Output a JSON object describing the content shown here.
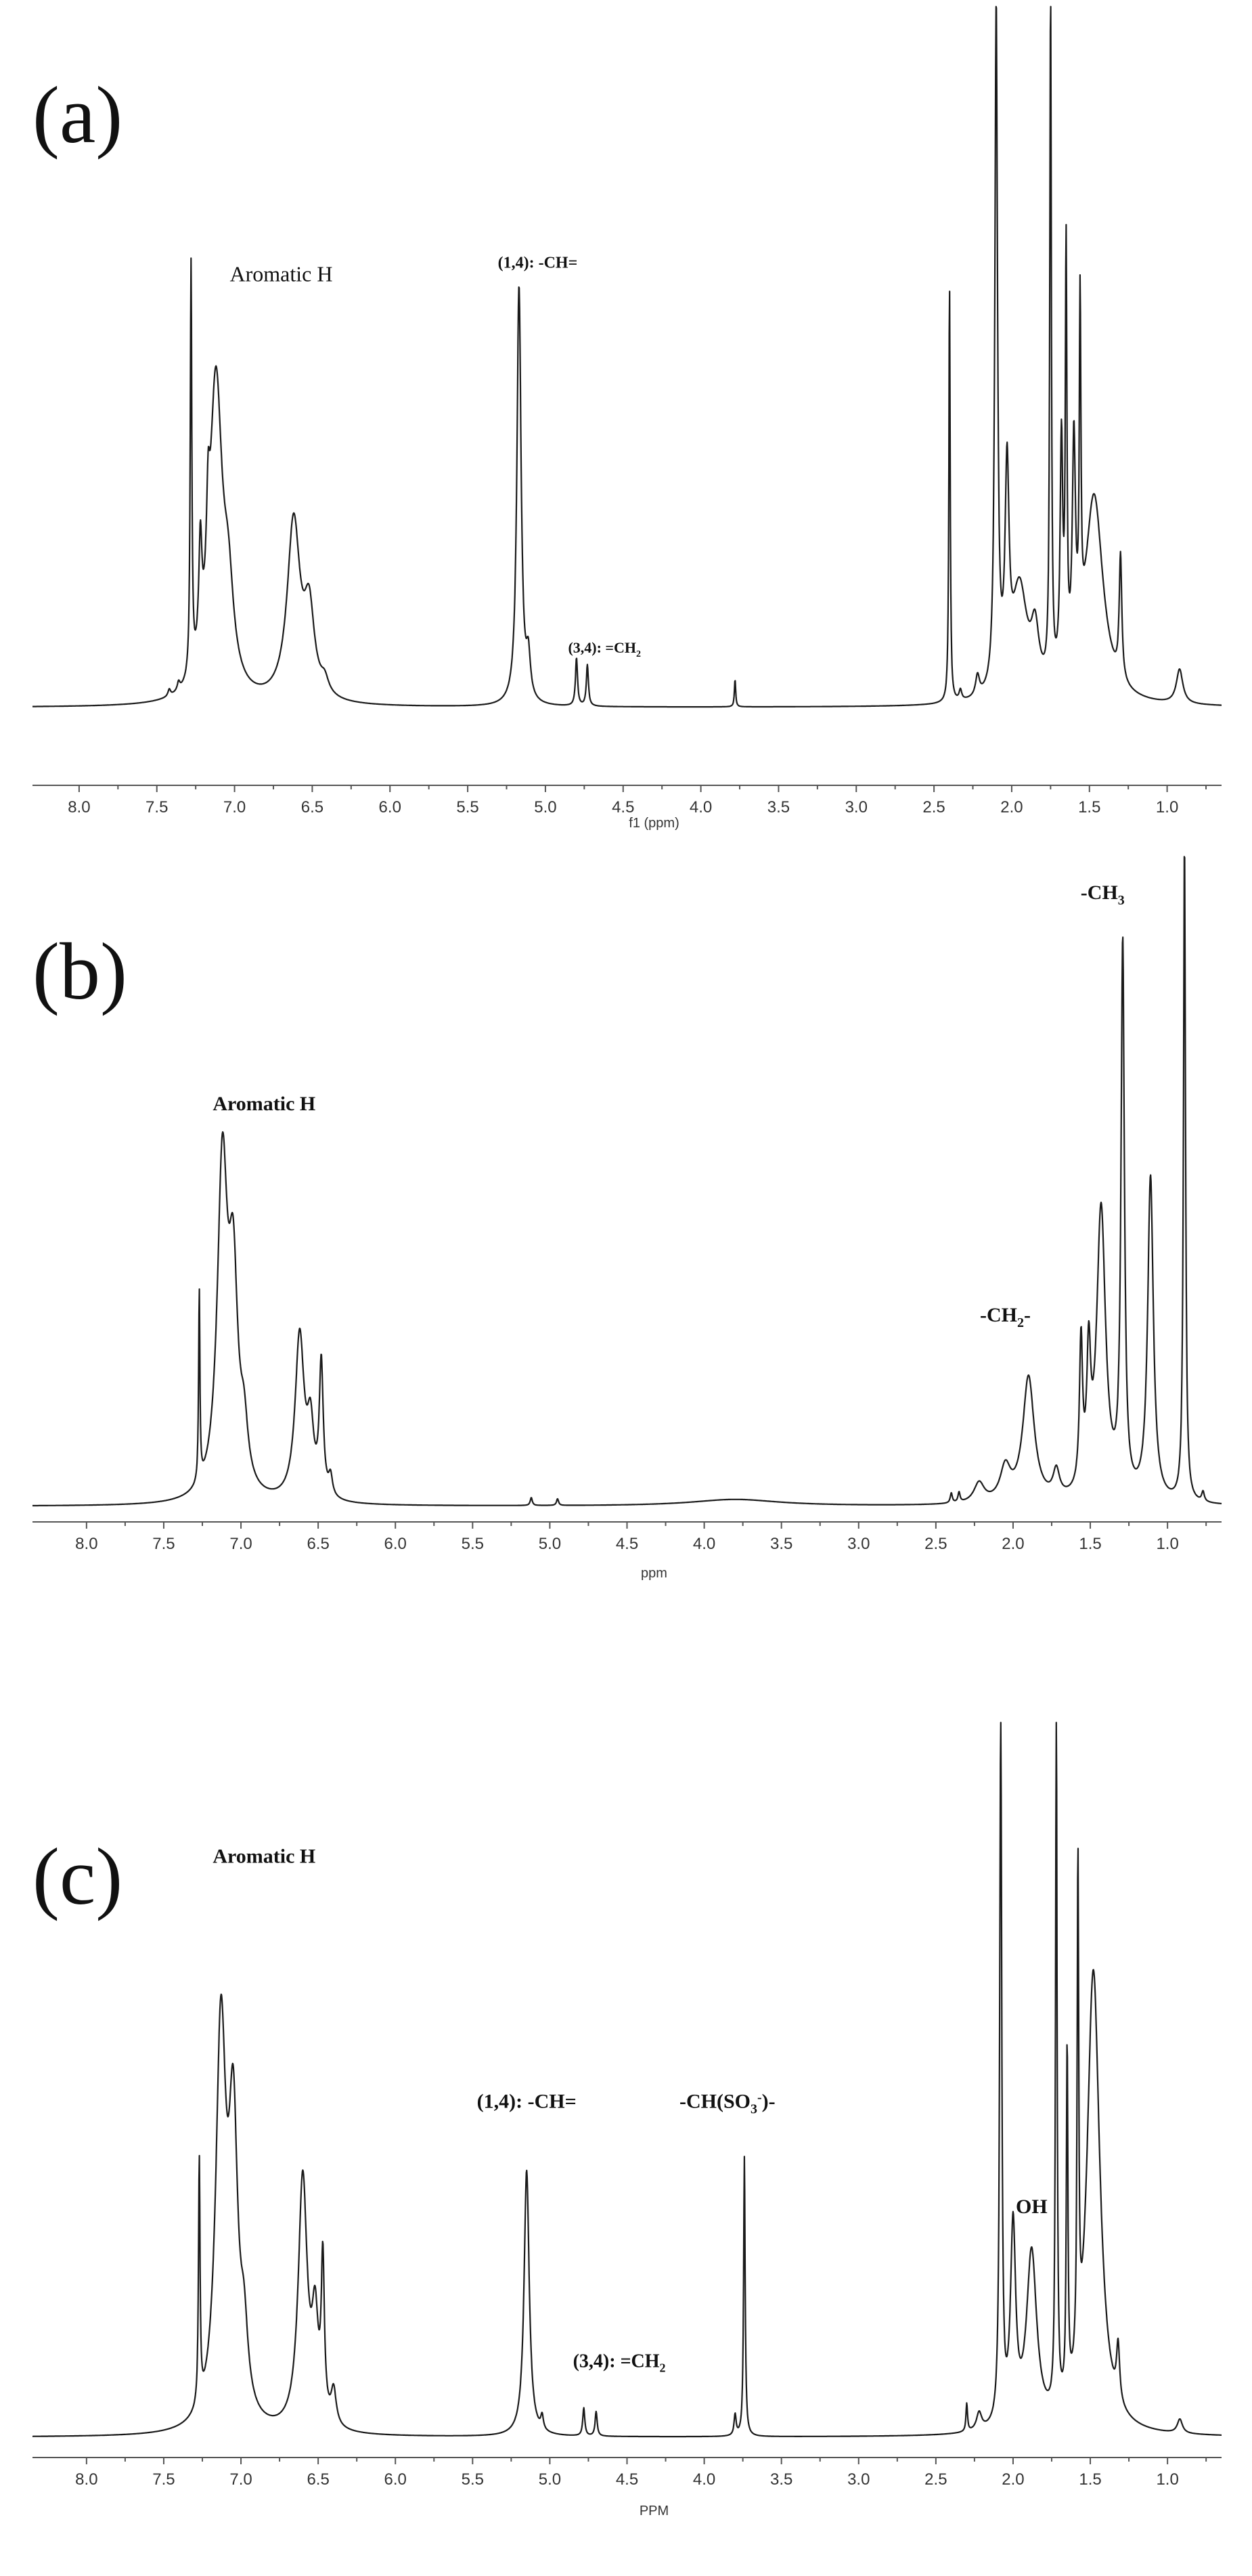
{
  "chart_data": [
    {
      "type": "line",
      "panel_label": "(a)",
      "xlabel": "f1 (ppm)",
      "xlim": [
        8.3,
        0.65
      ],
      "x_reversed": true,
      "ticks": [
        "8.0",
        "7.5",
        "7.0",
        "6.5",
        "6.0",
        "5.5",
        "5.0",
        "4.5",
        "4.0",
        "3.5",
        "3.0",
        "2.5",
        "2.0",
        "1.5",
        "1.0"
      ],
      "y_top": 1.0,
      "peaks": [
        {
          "x": 7.42,
          "h": 0.01,
          "w": 0.01
        },
        {
          "x": 7.36,
          "h": 0.012,
          "w": 0.01
        },
        {
          "x": 7.28,
          "h": 0.6,
          "w": 0.006
        },
        {
          "x": 7.22,
          "h": 0.16,
          "w": 0.012
        },
        {
          "x": 7.17,
          "h": 0.12,
          "w": 0.012
        },
        {
          "x": 7.12,
          "h": 0.46,
          "w": 0.05
        },
        {
          "x": 7.04,
          "h": 0.12,
          "w": 0.04
        },
        {
          "x": 6.62,
          "h": 0.26,
          "w": 0.05
        },
        {
          "x": 6.52,
          "h": 0.12,
          "w": 0.04
        },
        {
          "x": 6.42,
          "h": 0.02,
          "w": 0.03
        },
        {
          "x": 5.17,
          "h": 0.61,
          "w": 0.016
        },
        {
          "x": 5.11,
          "h": 0.06,
          "w": 0.016
        },
        {
          "x": 4.8,
          "h": 0.07,
          "w": 0.008
        },
        {
          "x": 4.73,
          "h": 0.06,
          "w": 0.008
        },
        {
          "x": 3.78,
          "h": 0.04,
          "w": 0.005
        },
        {
          "x": 2.4,
          "h": 0.61,
          "w": 0.005
        },
        {
          "x": 2.33,
          "h": 0.015,
          "w": 0.01
        },
        {
          "x": 2.22,
          "h": 0.03,
          "w": 0.015
        },
        {
          "x": 2.1,
          "h": 1.0,
          "w": 0.01
        },
        {
          "x": 2.03,
          "h": 0.3,
          "w": 0.015
        },
        {
          "x": 1.95,
          "h": 0.16,
          "w": 0.06
        },
        {
          "x": 1.85,
          "h": 0.08,
          "w": 0.03
        },
        {
          "x": 1.75,
          "h": 1.0,
          "w": 0.006
        },
        {
          "x": 1.68,
          "h": 0.34,
          "w": 0.01
        },
        {
          "x": 1.65,
          "h": 0.6,
          "w": 0.006
        },
        {
          "x": 1.6,
          "h": 0.32,
          "w": 0.012
        },
        {
          "x": 1.56,
          "h": 0.48,
          "w": 0.006
        },
        {
          "x": 1.47,
          "h": 0.3,
          "w": 0.07
        },
        {
          "x": 1.3,
          "h": 0.18,
          "w": 0.01
        },
        {
          "x": 0.92,
          "h": 0.05,
          "w": 0.025
        }
      ],
      "annotations": [
        {
          "text": "Aromatic H",
          "x": 6.7,
          "y": 0.62,
          "size": 32,
          "bold": false
        },
        {
          "text": "(1,4): -CH=",
          "x": 5.05,
          "y": 0.64,
          "size": 24,
          "bold": true
        },
        {
          "text": "(3,4): =CH",
          "sub": "2",
          "x": 4.62,
          "y": 0.08,
          "size": 22,
          "bold": true
        }
      ]
    },
    {
      "type": "line",
      "panel_label": "(b)",
      "xlabel": "ppm",
      "xlim": [
        8.35,
        0.65
      ],
      "x_reversed": true,
      "ticks": [
        "8.0",
        "7.5",
        "7.0",
        "6.5",
        "6.0",
        "5.5",
        "5.0",
        "4.5",
        "4.0",
        "3.5",
        "3.0",
        "2.5",
        "2.0",
        "1.5",
        "1.0"
      ],
      "y_top": 1.0,
      "peaks": [
        {
          "x": 7.27,
          "h": 0.29,
          "w": 0.005
        },
        {
          "x": 7.12,
          "h": 0.5,
          "w": 0.04
        },
        {
          "x": 7.05,
          "h": 0.3,
          "w": 0.035
        },
        {
          "x": 6.98,
          "h": 0.08,
          "w": 0.03
        },
        {
          "x": 6.62,
          "h": 0.25,
          "w": 0.035
        },
        {
          "x": 6.55,
          "h": 0.1,
          "w": 0.025
        },
        {
          "x": 6.48,
          "h": 0.2,
          "w": 0.015
        },
        {
          "x": 6.42,
          "h": 0.03,
          "w": 0.015
        },
        {
          "x": 5.12,
          "h": 0.012,
          "w": 0.008
        },
        {
          "x": 4.95,
          "h": 0.01,
          "w": 0.008
        },
        {
          "x": 3.8,
          "h": 0.01,
          "w": 0.35
        },
        {
          "x": 2.4,
          "h": 0.015,
          "w": 0.008
        },
        {
          "x": 2.35,
          "h": 0.015,
          "w": 0.008
        },
        {
          "x": 2.22,
          "h": 0.03,
          "w": 0.04
        },
        {
          "x": 2.05,
          "h": 0.05,
          "w": 0.04
        },
        {
          "x": 1.9,
          "h": 0.19,
          "w": 0.045
        },
        {
          "x": 1.72,
          "h": 0.04,
          "w": 0.025
        },
        {
          "x": 1.56,
          "h": 0.22,
          "w": 0.012
        },
        {
          "x": 1.51,
          "h": 0.19,
          "w": 0.015
        },
        {
          "x": 1.43,
          "h": 0.44,
          "w": 0.035
        },
        {
          "x": 1.29,
          "h": 0.83,
          "w": 0.013
        },
        {
          "x": 1.11,
          "h": 0.49,
          "w": 0.022
        },
        {
          "x": 0.89,
          "h": 1.0,
          "w": 0.008
        },
        {
          "x": 0.77,
          "h": 0.015,
          "w": 0.01
        }
      ],
      "annotations": [
        {
          "text": "Aromatic H",
          "x": 6.85,
          "y": 0.6,
          "size": 30,
          "bold": true
        },
        {
          "text": "-CH",
          "sub": "3",
          "x": 1.42,
          "y": 0.92,
          "size": 30,
          "bold": true
        },
        {
          "text": "-CH",
          "sub": "2",
          "suffix": "-",
          "x": 2.05,
          "y": 0.28,
          "size": 30,
          "bold": true
        }
      ]
    },
    {
      "type": "line",
      "panel_label": "(c)",
      "xlabel": "PPM",
      "xlim": [
        8.35,
        0.65
      ],
      "x_reversed": true,
      "ticks": [
        "8.0",
        "7.5",
        "7.0",
        "6.5",
        "6.0",
        "5.5",
        "5.0",
        "4.5",
        "4.0",
        "3.5",
        "3.0",
        "2.5",
        "2.0",
        "1.5",
        "1.0"
      ],
      "y_top": 1.0,
      "peaks": [
        {
          "x": 7.27,
          "h": 0.35,
          "w": 0.006
        },
        {
          "x": 7.13,
          "h": 0.56,
          "w": 0.04
        },
        {
          "x": 7.05,
          "h": 0.4,
          "w": 0.035
        },
        {
          "x": 6.98,
          "h": 0.1,
          "w": 0.03
        },
        {
          "x": 6.6,
          "h": 0.36,
          "w": 0.035
        },
        {
          "x": 6.52,
          "h": 0.14,
          "w": 0.025
        },
        {
          "x": 6.47,
          "h": 0.22,
          "w": 0.012
        },
        {
          "x": 6.4,
          "h": 0.05,
          "w": 0.02
        },
        {
          "x": 5.15,
          "h": 0.38,
          "w": 0.02
        },
        {
          "x": 5.05,
          "h": 0.02,
          "w": 0.01
        },
        {
          "x": 4.78,
          "h": 0.04,
          "w": 0.008
        },
        {
          "x": 4.7,
          "h": 0.035,
          "w": 0.008
        },
        {
          "x": 3.8,
          "h": 0.03,
          "w": 0.008
        },
        {
          "x": 3.74,
          "h": 0.4,
          "w": 0.006
        },
        {
          "x": 2.3,
          "h": 0.04,
          "w": 0.006
        },
        {
          "x": 2.22,
          "h": 0.025,
          "w": 0.02
        },
        {
          "x": 2.08,
          "h": 1.0,
          "w": 0.008
        },
        {
          "x": 2.0,
          "h": 0.28,
          "w": 0.02
        },
        {
          "x": 1.88,
          "h": 0.25,
          "w": 0.04
        },
        {
          "x": 1.72,
          "h": 1.0,
          "w": 0.006
        },
        {
          "x": 1.65,
          "h": 0.5,
          "w": 0.006
        },
        {
          "x": 1.58,
          "h": 0.71,
          "w": 0.006
        },
        {
          "x": 1.48,
          "h": 0.66,
          "w": 0.05
        },
        {
          "x": 1.32,
          "h": 0.08,
          "w": 0.012
        },
        {
          "x": 0.92,
          "h": 0.02,
          "w": 0.02
        }
      ],
      "annotations": [
        {
          "text": "Aromatic H",
          "x": 6.85,
          "y": 0.82,
          "size": 30,
          "bold": true
        },
        {
          "text": "(1,4): -CH=",
          "x": 5.15,
          "y": 0.47,
          "size": 30,
          "bold": true
        },
        {
          "text": "(3,4): =CH",
          "sub": "2",
          "x": 4.55,
          "y": 0.1,
          "size": 28,
          "bold": true
        },
        {
          "text": "-CH(SO",
          "sub": "3",
          "sup": "-",
          "suffix": ")-",
          "x": 3.85,
          "y": 0.47,
          "size": 30,
          "bold": true
        },
        {
          "text": "OH",
          "x": 1.88,
          "y": 0.32,
          "size": 30,
          "bold": true
        }
      ]
    }
  ]
}
